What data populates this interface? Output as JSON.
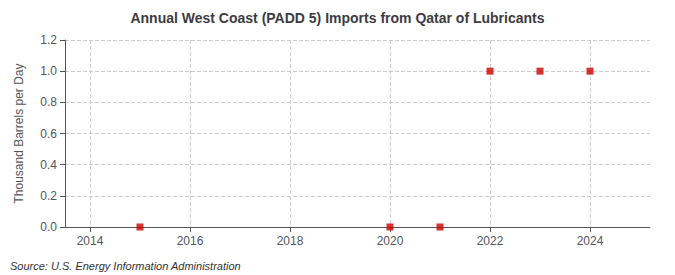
{
  "chart_data": {
    "type": "scatter",
    "title": "Annual West Coast (PADD 5) Imports from Qatar of Lubricants",
    "ylabel": "Thousand Barrels per Day",
    "annotations": [
      "Source: U.S. Energy Information Administration"
    ],
    "x": [
      2015,
      2020,
      2021,
      2022,
      2023,
      2024
    ],
    "values": [
      0.0,
      0.0,
      0.0,
      1.0,
      1.0,
      1.0
    ],
    "color": "#cc0000",
    "marker": "square",
    "xlim": [
      2013.5,
      2025.2
    ],
    "xticks": [
      2014,
      2016,
      2018,
      2020,
      2022,
      2024
    ],
    "ylim": [
      0,
      1.2
    ],
    "yticks": [
      {
        "value": 0,
        "label": "0.0"
      },
      0.2,
      0.4,
      0.6,
      0.8,
      {
        "value": 1,
        "label": "1.0"
      },
      1.2
    ],
    "grid": true
  }
}
